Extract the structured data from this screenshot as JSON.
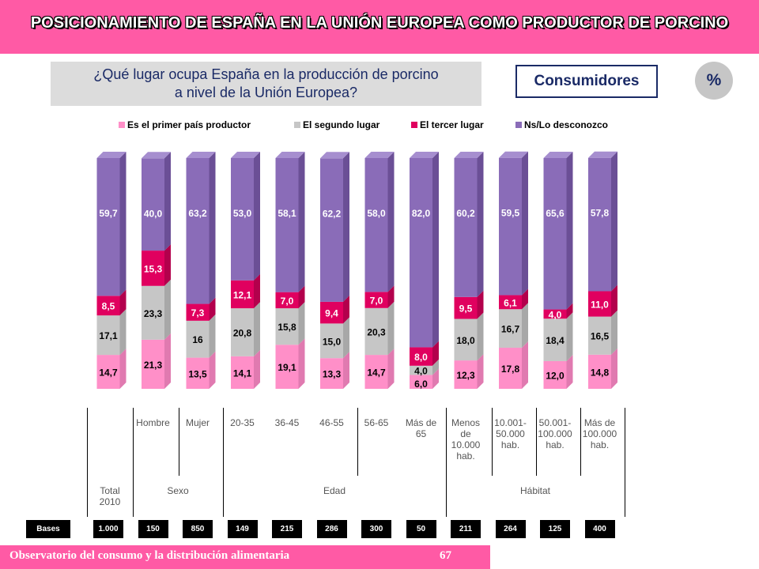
{
  "header": {
    "title": "POSICIONAMIENTO DE ESPAÑA EN LA UNIÓN EUROPEA COMO PRODUCTOR DE PORCINO"
  },
  "question": {
    "line1": "¿Qué lugar ocupa España en la producción de porcino",
    "line2": "a nivel de la Unión Europea?"
  },
  "segment": {
    "label": "Consumidores"
  },
  "unit_badge": {
    "label": "%"
  },
  "legend": [
    {
      "label": "Es el primer país productor",
      "color": "#ff8fc8"
    },
    {
      "label": "El segundo  lugar",
      "color": "#c6c6c6"
    },
    {
      "label": "El tercer lugar",
      "color": "#e0005f"
    },
    {
      "label": "Ns/Lo desconozco",
      "color": "#8a6cb8"
    }
  ],
  "chart_data": {
    "type": "bar",
    "stacked": true,
    "title": "¿Qué lugar ocupa España en la producción de porcino a nivel de la Unión Europea?",
    "categories": [
      "Total 2010",
      "Hombre",
      "Mujer",
      "20-35",
      "36-45",
      "46-55",
      "56-65",
      "Más de 65",
      "Menos de 10.000 hab.",
      "10.001-50.000 hab.",
      "50.001-100.000 hab.",
      "Más de 100.000 hab."
    ],
    "series": [
      {
        "name": "Es el primer país productor",
        "color": "#ff8fc8",
        "values": [
          14.7,
          21.3,
          13.5,
          14.1,
          19.1,
          13.3,
          14.7,
          6.0,
          12.3,
          17.8,
          12.0,
          14.8
        ],
        "labels": [
          "14,7",
          "21,3",
          "13,5",
          "14,1",
          "19,1",
          "13,3",
          "14,7",
          "6,0",
          "12,3",
          "17,8",
          "12,0",
          "14,8"
        ]
      },
      {
        "name": "El segundo  lugar",
        "color": "#c6c6c6",
        "values": [
          17.1,
          23.3,
          16,
          20.8,
          15.8,
          15.0,
          20.3,
          4.0,
          18.0,
          16.7,
          18.4,
          16.5
        ],
        "labels": [
          "17,1",
          "23,3",
          "16",
          "20,8",
          "15,8",
          "15,0",
          "20,3",
          "4,0",
          "18,0",
          "16,7",
          "18,4",
          "16,5"
        ]
      },
      {
        "name": "El tercer lugar",
        "color": "#e0005f",
        "values": [
          8.5,
          15.3,
          7.3,
          12.1,
          7.0,
          9.4,
          7.0,
          8.0,
          9.5,
          6.1,
          4.0,
          11.0
        ],
        "labels": [
          "8,5",
          "15,3",
          "7,3",
          "12,1",
          "7,0",
          "9,4",
          "7,0",
          "8,0",
          "9,5",
          "6,1",
          "4,0",
          "11,0"
        ]
      },
      {
        "name": "Ns/Lo desconozco",
        "color": "#8a6cb8",
        "values": [
          59.7,
          40.0,
          63.2,
          53.0,
          58.1,
          62.2,
          58.0,
          82.0,
          60.2,
          59.5,
          65.6,
          57.8
        ],
        "labels": [
          "59,7",
          "40,0",
          "63,2",
          "53,0",
          "58,1",
          "62,2",
          "58,0",
          "82,0",
          "60,2",
          "59,5",
          "65,6",
          "57,8"
        ]
      }
    ],
    "ylim": [
      0,
      100
    ],
    "xlabel": "",
    "ylabel": "%"
  },
  "table": {
    "columns": [
      "",
      "Hombre",
      "Mujer",
      "20-35",
      "36-45",
      "46-55",
      "56-65",
      "Más de\n65",
      "Menos\nde\n10.000\nhab.",
      "10.001-\n50.000\nhab.",
      "50.001-\n100.000\nhab.",
      "Más de\n100.000\nhab."
    ],
    "groups": {
      "total": "Total\n2010",
      "sexo": "Sexo",
      "edad": "Edad",
      "habitat": "Hábitat"
    },
    "bases_label": "Bases",
    "bases": [
      "1.000",
      "150",
      "850",
      "149",
      "215",
      "286",
      "300",
      "50",
      "211",
      "264",
      "125",
      "400"
    ]
  },
  "footer": {
    "text": "Observatorio del consumo y la distribución alimentaria",
    "page": "67"
  }
}
